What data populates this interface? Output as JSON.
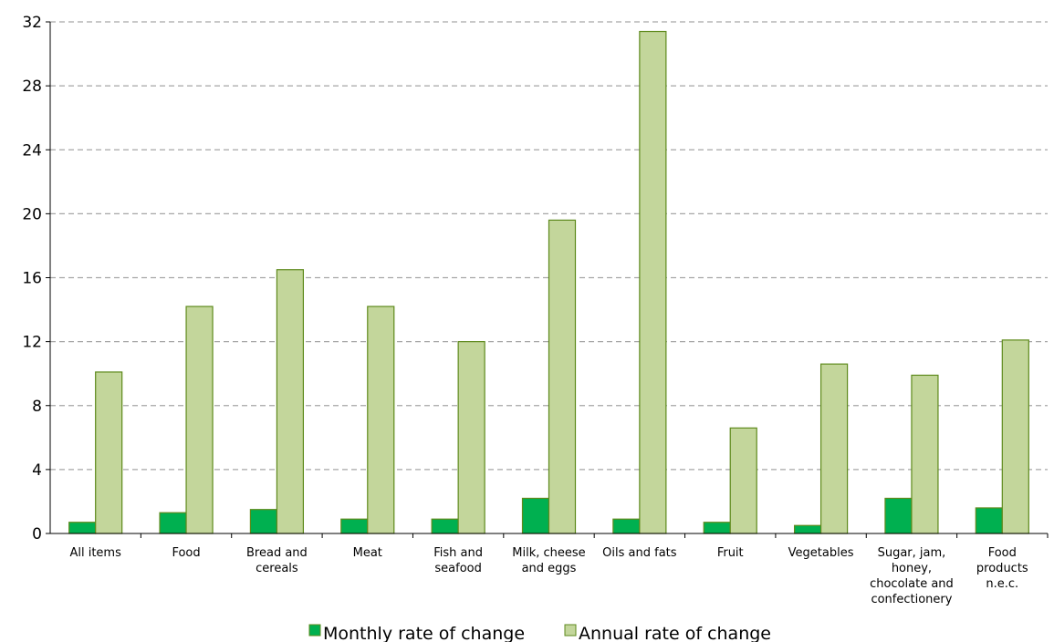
{
  "chart_data": {
    "type": "bar",
    "categories": [
      "All items",
      "Food",
      "Bread and cereals",
      "Meat",
      "Fish and seafood",
      "Milk, cheese and eggs",
      "Oils and fats",
      "Fruit",
      "Vegetables",
      "Sugar, jam, honey, chocolate and confectionery",
      "Food products n.e.c."
    ],
    "category_lines": [
      [
        "All items"
      ],
      [
        "Food"
      ],
      [
        "Bread and",
        "cereals"
      ],
      [
        "Meat"
      ],
      [
        "Fish and",
        "seafood"
      ],
      [
        "Milk, cheese",
        "and eggs"
      ],
      [
        "Oils and fats"
      ],
      [
        "Fruit"
      ],
      [
        "Vegetables"
      ],
      [
        "Sugar, jam,",
        "honey,",
        "chocolate and",
        "confectionery"
      ],
      [
        "Food",
        "products",
        "n.e.c."
      ]
    ],
    "series": [
      {
        "name": "Monthly rate of change",
        "color": "#00b050",
        "values": [
          0.7,
          1.3,
          1.5,
          0.9,
          0.9,
          2.2,
          0.9,
          0.7,
          0.5,
          2.2,
          1.6
        ]
      },
      {
        "name": "Annual rate of change",
        "color": "#c3d69b",
        "values": [
          10.1,
          14.2,
          16.5,
          14.2,
          12.0,
          19.6,
          31.4,
          6.6,
          10.6,
          9.9,
          12.1
        ]
      }
    ],
    "bar_outline": "#5e8a1c",
    "ylim": [
      0,
      32
    ],
    "yticks": [
      "0",
      "4",
      "8",
      "12",
      "16",
      "20",
      "24",
      "28",
      "32"
    ],
    "grid": true,
    "legend_position": "bottom",
    "title": "",
    "xlabel": "",
    "ylabel": ""
  }
}
